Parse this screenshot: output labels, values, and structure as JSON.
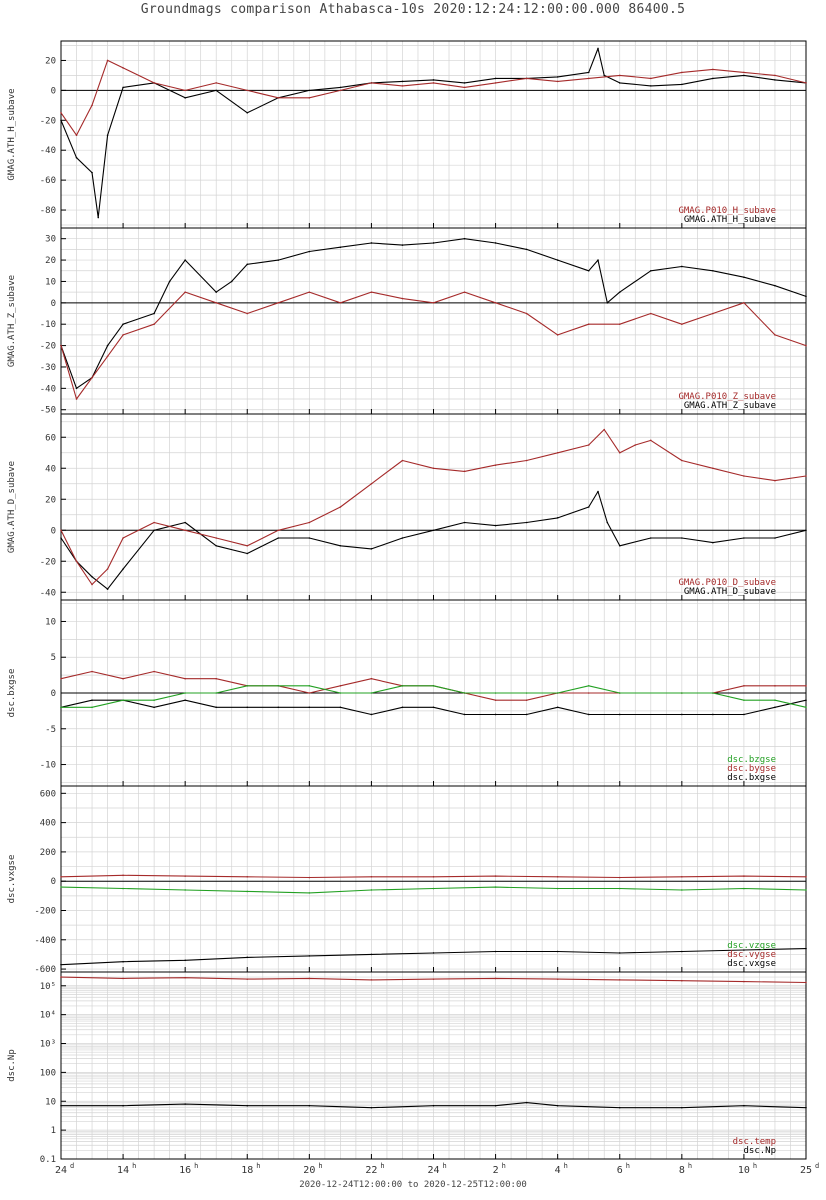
{
  "title": "Groundmags comparison Athabasca-10s 2020:12:24:12:00:00.000 86400.5",
  "time_range_label": "2020-12-24T12:00:00 to 2020-12-25T12:00:00",
  "colors": {
    "black": "#000000",
    "red": "#a52a2a",
    "green": "#22a022",
    "grid": "#d4d4d4",
    "axis": "#000000"
  },
  "chart_data": [
    {
      "type": "line",
      "ylabel": "GMAG.ATH_H_subave",
      "ylim": [
        -92,
        33
      ],
      "yticks": [
        20,
        0,
        -20,
        -40,
        -60,
        -80
      ],
      "grid": true,
      "legend_position": "bottom-right",
      "series": [
        {
          "name": "GMAG.ATH_H_subave",
          "color": "black",
          "x": [
            12,
            12.5,
            13,
            13.2,
            13.5,
            14,
            15,
            16,
            17,
            18,
            19,
            20,
            21,
            22,
            23,
            24,
            25,
            26,
            27,
            28,
            29,
            29.3,
            29.5,
            30,
            31,
            32,
            33,
            34,
            35,
            36
          ],
          "y": [
            -20,
            -45,
            -55,
            -85,
            -30,
            2,
            5,
            -5,
            0,
            -15,
            -5,
            0,
            2,
            5,
            6,
            7,
            5,
            8,
            8,
            9,
            12,
            28,
            10,
            5,
            3,
            4,
            8,
            10,
            7,
            5
          ]
        },
        {
          "name": "GMAG.P010_H_subave",
          "color": "red",
          "x": [
            12,
            12.5,
            13,
            13.5,
            14,
            15,
            16,
            17,
            18,
            19,
            20,
            21,
            22,
            23,
            24,
            25,
            26,
            27,
            28,
            29,
            30,
            31,
            32,
            33,
            34,
            35,
            36
          ],
          "y": [
            -15,
            -30,
            -10,
            20,
            15,
            5,
            0,
            5,
            0,
            -5,
            -5,
            0,
            5,
            3,
            5,
            2,
            5,
            8,
            6,
            8,
            10,
            8,
            12,
            14,
            12,
            10,
            5
          ]
        }
      ]
    },
    {
      "type": "line",
      "ylabel": "GMAG.ATH_Z_subave",
      "ylim": [
        -52,
        35
      ],
      "yticks": [
        30,
        20,
        10,
        0,
        -10,
        -20,
        -30,
        -40,
        -50
      ],
      "grid": true,
      "legend_position": "bottom-right",
      "series": [
        {
          "name": "GMAG.ATH_Z_subave",
          "color": "black",
          "x": [
            12,
            12.5,
            13,
            13.5,
            14,
            15,
            15.5,
            16,
            17,
            17.5,
            18,
            19,
            20,
            21,
            22,
            23,
            24,
            25,
            26,
            27,
            28,
            29,
            29.3,
            29.6,
            30,
            31,
            32,
            33,
            34,
            35,
            36
          ],
          "y": [
            -20,
            -40,
            -35,
            -20,
            -10,
            -5,
            10,
            20,
            5,
            10,
            18,
            20,
            24,
            26,
            28,
            27,
            28,
            30,
            28,
            25,
            20,
            15,
            20,
            0,
            5,
            15,
            17,
            15,
            12,
            8,
            3
          ]
        },
        {
          "name": "GMAG.P010_Z_subave",
          "color": "red",
          "x": [
            12,
            12.5,
            13,
            13.5,
            14,
            15,
            16,
            17,
            18,
            19,
            20,
            21,
            22,
            23,
            24,
            25,
            26,
            27,
            28,
            29,
            30,
            31,
            32,
            33,
            34,
            35,
            36
          ],
          "y": [
            -20,
            -45,
            -35,
            -25,
            -15,
            -10,
            5,
            0,
            -5,
            0,
            5,
            0,
            5,
            2,
            0,
            5,
            0,
            -5,
            -15,
            -10,
            -10,
            -5,
            -10,
            -5,
            0,
            -15,
            -20
          ]
        }
      ]
    },
    {
      "type": "line",
      "ylabel": "GMAG.ATH_D_subave",
      "ylim": [
        -45,
        75
      ],
      "yticks": [
        60,
        40,
        20,
        0,
        -20,
        -40
      ],
      "grid": true,
      "legend_position": "bottom-right",
      "series": [
        {
          "name": "GMAG.ATH_D_subave",
          "color": "black",
          "x": [
            12,
            12.5,
            13,
            13.5,
            14,
            15,
            16,
            17,
            18,
            19,
            20,
            21,
            22,
            23,
            24,
            25,
            26,
            27,
            28,
            29,
            29.3,
            29.6,
            30,
            31,
            32,
            33,
            34,
            35,
            36
          ],
          "y": [
            -5,
            -20,
            -30,
            -38,
            -25,
            0,
            5,
            -10,
            -15,
            -5,
            -5,
            -10,
            -12,
            -5,
            0,
            5,
            3,
            5,
            8,
            15,
            25,
            5,
            -10,
            -5,
            -5,
            -8,
            -5,
            -5,
            0
          ]
        },
        {
          "name": "GMAG.P010_D_subave",
          "color": "red",
          "x": [
            12,
            12.5,
            13,
            13.5,
            14,
            15,
            16,
            17,
            18,
            19,
            20,
            21,
            22,
            23,
            24,
            25,
            26,
            27,
            28,
            29,
            29.5,
            30,
            30.5,
            31,
            32,
            33,
            34,
            35,
            36
          ],
          "y": [
            0,
            -20,
            -35,
            -25,
            -5,
            5,
            0,
            -5,
            -10,
            0,
            5,
            15,
            30,
            45,
            40,
            38,
            42,
            45,
            50,
            55,
            65,
            50,
            55,
            58,
            45,
            40,
            35,
            32,
            35
          ]
        }
      ]
    },
    {
      "type": "line",
      "ylabel": "dsc.bxgse",
      "ylim": [
        -13,
        13
      ],
      "yticks": [
        10,
        5,
        0,
        -5,
        -10
      ],
      "grid": true,
      "legend_position": "bottom-right",
      "series": [
        {
          "name": "dsc.bxgse",
          "color": "black",
          "x": [
            12,
            13,
            14,
            15,
            16,
            17,
            18,
            19,
            20,
            21,
            22,
            23,
            24,
            25,
            26,
            27,
            28,
            29,
            30,
            32,
            33,
            34,
            35,
            36
          ],
          "y": [
            -2,
            -1,
            -1,
            -2,
            -1,
            -2,
            -2,
            -2,
            -2,
            -2,
            -3,
            -2,
            -2,
            -3,
            -3,
            -3,
            -2,
            -3,
            -3,
            -3,
            -3,
            -3,
            -2,
            -1
          ]
        },
        {
          "name": "dsc.bygse",
          "color": "red",
          "x": [
            12,
            13,
            14,
            15,
            16,
            17,
            18,
            19,
            20,
            21,
            22,
            23,
            24,
            25,
            26,
            27,
            28,
            29,
            30,
            32,
            33,
            34,
            35,
            36
          ],
          "y": [
            2,
            3,
            2,
            3,
            2,
            2,
            1,
            1,
            0,
            1,
            2,
            1,
            1,
            0,
            -1,
            -1,
            0,
            0,
            0,
            0,
            0,
            1,
            1,
            1
          ]
        },
        {
          "name": "dsc.bzgse",
          "color": "green",
          "x": [
            12,
            13,
            14,
            15,
            16,
            17,
            18,
            19,
            20,
            21,
            22,
            23,
            24,
            25,
            26,
            27,
            28,
            29,
            30,
            32,
            33,
            34,
            35,
            36
          ],
          "y": [
            -2,
            -2,
            -1,
            -1,
            0,
            0,
            1,
            1,
            1,
            0,
            0,
            1,
            1,
            0,
            0,
            0,
            0,
            1,
            0,
            0,
            0,
            -1,
            -1,
            -2
          ]
        }
      ]
    },
    {
      "type": "line",
      "ylabel": "dsc.vxgse",
      "ylim": [
        -620,
        650
      ],
      "yticks": [
        600,
        400,
        200,
        0,
        -200,
        -400,
        -600
      ],
      "grid": true,
      "legend_position": "bottom-right",
      "series": [
        {
          "name": "dsc.vxgse",
          "color": "black",
          "x": [
            12,
            14,
            16,
            18,
            20,
            22,
            24,
            26,
            28,
            30,
            32,
            34,
            36
          ],
          "y": [
            -570,
            -550,
            -540,
            -520,
            -510,
            -500,
            -490,
            -480,
            -480,
            -490,
            -480,
            -470,
            -460
          ]
        },
        {
          "name": "dsc.vygse",
          "color": "red",
          "x": [
            12,
            14,
            16,
            18,
            20,
            22,
            24,
            26,
            28,
            30,
            32,
            34,
            36
          ],
          "y": [
            30,
            40,
            35,
            30,
            25,
            30,
            30,
            35,
            30,
            25,
            30,
            35,
            30
          ]
        },
        {
          "name": "dsc.vzgse",
          "color": "green",
          "x": [
            12,
            14,
            16,
            18,
            20,
            22,
            24,
            26,
            28,
            30,
            32,
            34,
            36
          ],
          "y": [
            -40,
            -50,
            -60,
            -70,
            -80,
            -60,
            -50,
            -40,
            -50,
            -50,
            -60,
            -50,
            -60
          ]
        }
      ]
    },
    {
      "type": "line",
      "ylabel": "dsc.Np",
      "yscale": "log",
      "ylim": [
        0.1,
        300000
      ],
      "yticks": [
        100000,
        10000,
        1000,
        100,
        10,
        1,
        0.1
      ],
      "ytick_labels": [
        "10⁵",
        "10⁴",
        "10³",
        "100",
        "10",
        "1",
        "0.1"
      ],
      "grid": true,
      "legend_position": "bottom-right",
      "series": [
        {
          "name": "dsc.Np",
          "color": "black",
          "x": [
            12,
            14,
            16,
            18,
            20,
            22,
            24,
            26,
            27,
            28,
            30,
            32,
            34,
            36
          ],
          "y": [
            7,
            7,
            8,
            7,
            7,
            6,
            7,
            7,
            9,
            7,
            6,
            6,
            7,
            6
          ]
        },
        {
          "name": "dsc.temp",
          "color": "red",
          "x": [
            12,
            14,
            16,
            18,
            20,
            22,
            24,
            26,
            28,
            30,
            32,
            34,
            36
          ],
          "y": [
            200000,
            180000,
            190000,
            170000,
            180000,
            160000,
            170000,
            180000,
            170000,
            160000,
            150000,
            140000,
            130000
          ]
        }
      ]
    }
  ],
  "x_axis": {
    "xlim": [
      12,
      36
    ],
    "ticks": [
      {
        "pos": 12,
        "label": "24",
        "sup": "d"
      },
      {
        "pos": 14,
        "label": "14",
        "sup": "h"
      },
      {
        "pos": 16,
        "label": "16",
        "sup": "h"
      },
      {
        "pos": 18,
        "label": "18",
        "sup": "h"
      },
      {
        "pos": 20,
        "label": "20",
        "sup": "h"
      },
      {
        "pos": 22,
        "label": "22",
        "sup": "h"
      },
      {
        "pos": 24,
        "label": "24",
        "sup": "h"
      },
      {
        "pos": 26,
        "label": "2",
        "sup": "h"
      },
      {
        "pos": 28,
        "label": "4",
        "sup": "h"
      },
      {
        "pos": 30,
        "label": "6",
        "sup": "h"
      },
      {
        "pos": 32,
        "label": "8",
        "sup": "h"
      },
      {
        "pos": 34,
        "label": "10",
        "sup": "h"
      },
      {
        "pos": 36,
        "label": "25",
        "sup": "d"
      }
    ]
  }
}
